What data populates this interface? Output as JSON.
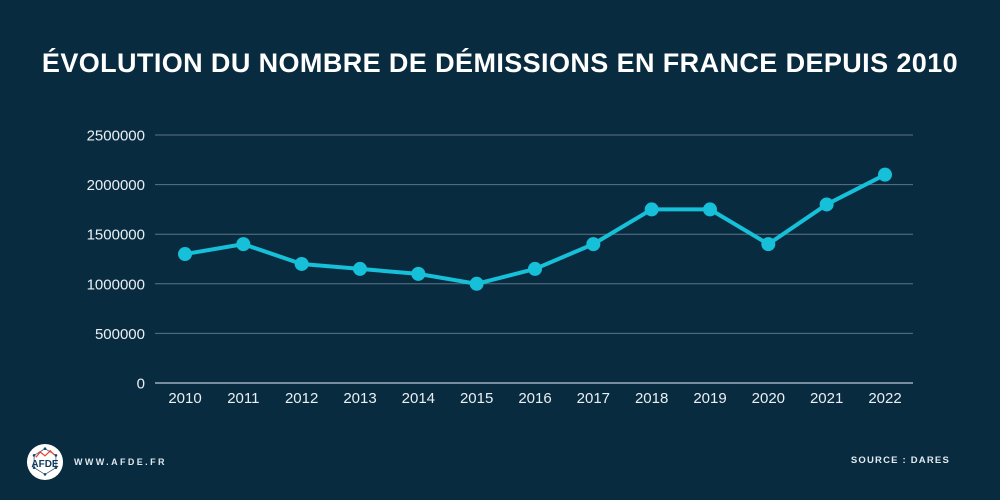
{
  "header": {
    "title": "ÉVOLUTION DU NOMBRE DE DÉMISSIONS EN FRANCE DEPUIS 2010"
  },
  "chart_data": {
    "type": "line",
    "categories": [
      "2010",
      "2011",
      "2012",
      "2013",
      "2014",
      "2015",
      "2016",
      "2017",
      "2018",
      "2019",
      "2020",
      "2021",
      "2022"
    ],
    "values": [
      1300000,
      1400000,
      1200000,
      1150000,
      1100000,
      1000000,
      1150000,
      1400000,
      1750000,
      1750000,
      1400000,
      1800000,
      2100000
    ],
    "title": "ÉVOLUTION DU NOMBRE DE DÉMISSIONS EN FRANCE DEPUIS 2010",
    "xlabel": "",
    "ylabel": "",
    "ylim": [
      0,
      2500000
    ],
    "yticks": [
      0,
      500000,
      1000000,
      1500000,
      2000000,
      2500000
    ],
    "ytick_labels": [
      "0",
      "500000",
      "1000000",
      "1500000",
      "2000000",
      "2500000"
    ],
    "grid": true,
    "legend": false,
    "line_color": "#16c0d8",
    "marker_color": "#16c0d8",
    "gridline_color": "#aebfc9"
  },
  "footer": {
    "logo_text": "AFDE",
    "website": "WWW.AFDE.FR",
    "source": "SOURCE : DARES"
  },
  "colors": {
    "background": "#082b40",
    "accent": "#16c0d8",
    "title_text": "#ffffff",
    "tick_text": "#e9eff3",
    "logo_red": "#e8442e",
    "logo_navy": "#1c4668"
  }
}
